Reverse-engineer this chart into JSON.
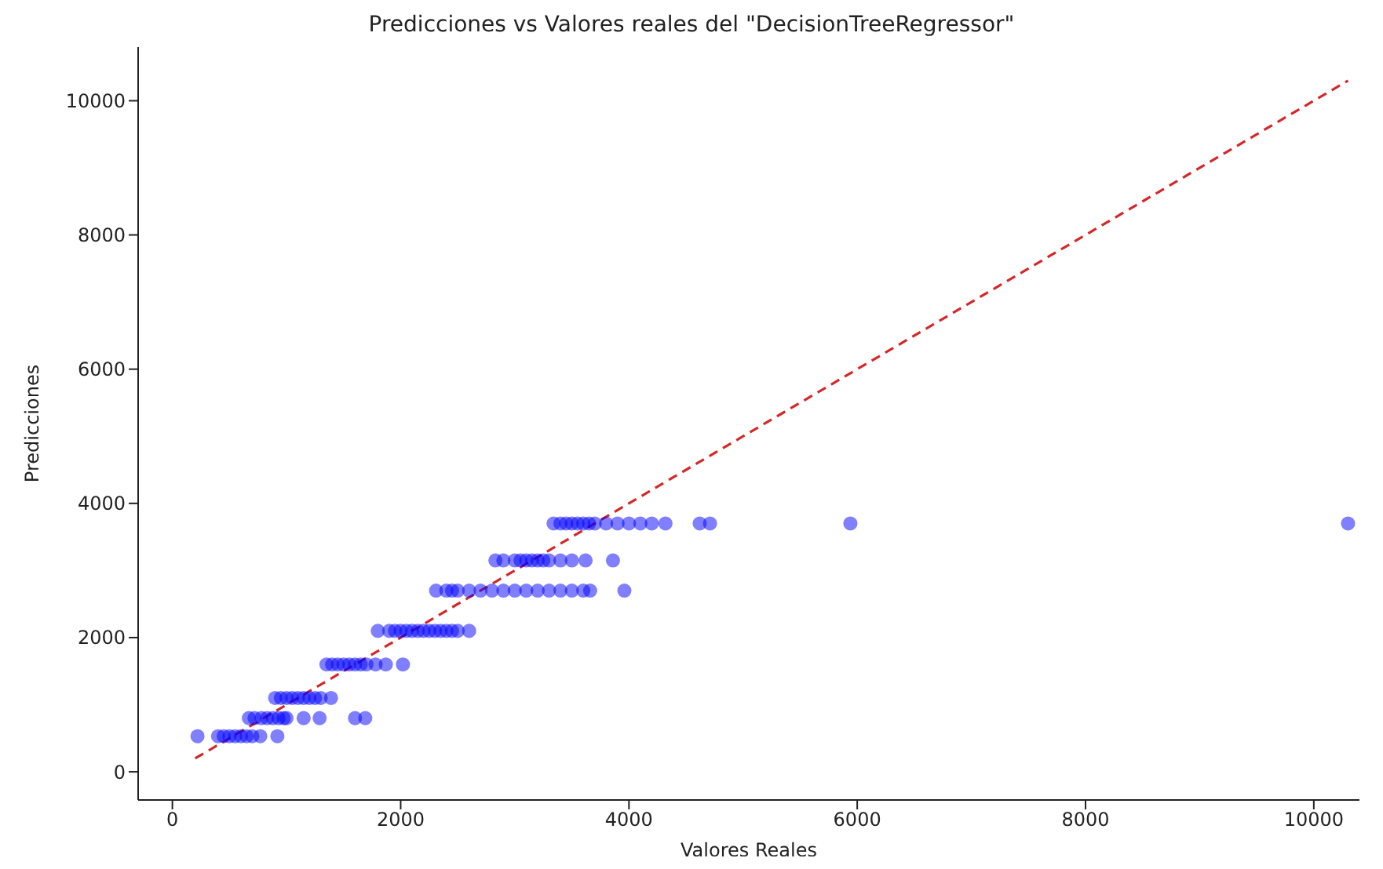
{
  "chart_data": {
    "type": "scatter",
    "title": "Predicciones vs Valores reales del \"DecisionTreeRegressor\"",
    "xlabel": "Valores Reales",
    "ylabel": "Predicciones",
    "x": [
      220,
      400,
      450,
      500,
      550,
      600,
      650,
      700,
      770,
      920,
      670,
      720,
      780,
      830,
      880,
      930,
      975,
      1000,
      1150,
      1290,
      1600,
      1690,
      900,
      950,
      1000,
      1050,
      1100,
      1150,
      1200,
      1250,
      1300,
      1390,
      1350,
      1400,
      1450,
      1500,
      1550,
      1600,
      1650,
      1700,
      1780,
      1870,
      2020,
      1800,
      1900,
      1950,
      2000,
      2050,
      2100,
      2150,
      2200,
      2250,
      2300,
      2350,
      2400,
      2450,
      2500,
      2600,
      2310,
      2400,
      2450,
      2500,
      2600,
      2700,
      2800,
      2900,
      3000,
      3100,
      3200,
      3300,
      3400,
      3500,
      3600,
      3660,
      3960,
      2830,
      2900,
      3000,
      3050,
      3100,
      3150,
      3200,
      3250,
      3300,
      3400,
      3500,
      3620,
      3860,
      3340,
      3400,
      3450,
      3500,
      3550,
      3600,
      3650,
      3700,
      3800,
      3900,
      4000,
      4100,
      4200,
      4320,
      4620,
      4710,
      5940,
      10300
    ],
    "series": [
      {
        "color": "#0000ff",
        "values": [
          530,
          530,
          530,
          530,
          530,
          530,
          530,
          530,
          530,
          530,
          800,
          800,
          800,
          800,
          800,
          800,
          800,
          800,
          800,
          800,
          800,
          800,
          1100,
          1100,
          1100,
          1100,
          1100,
          1100,
          1100,
          1100,
          1100,
          1100,
          1600,
          1600,
          1600,
          1600,
          1600,
          1600,
          1600,
          1600,
          1600,
          1600,
          1600,
          2100,
          2100,
          2100,
          2100,
          2100,
          2100,
          2100,
          2100,
          2100,
          2100,
          2100,
          2100,
          2100,
          2100,
          2100,
          2700,
          2700,
          2700,
          2700,
          2700,
          2700,
          2700,
          2700,
          2700,
          2700,
          2700,
          2700,
          2700,
          2700,
          2700,
          2700,
          2700,
          3150,
          3150,
          3150,
          3150,
          3150,
          3150,
          3150,
          3150,
          3150,
          3150,
          3150,
          3150,
          3150,
          3700,
          3700,
          3700,
          3700,
          3700,
          3700,
          3700,
          3700,
          3700,
          3700,
          3700,
          3700,
          3700,
          3700,
          3700,
          3700,
          3700,
          3700
        ]
      },
      {
        "type": "line",
        "color": "#d62728",
        "line_style": "dashed",
        "marker": "none",
        "x": [
          200,
          10300
        ],
        "values": [
          200,
          10300
        ]
      }
    ],
    "marker": "circle",
    "xlim": [
      -300,
      10400
    ],
    "ylim": [
      -420,
      10800
    ],
    "xticks": [
      0,
      2000,
      4000,
      6000,
      8000,
      10000
    ],
    "yticks": [
      0,
      2000,
      4000,
      6000,
      8000,
      10000
    ],
    "grid": false,
    "legend": false
  }
}
